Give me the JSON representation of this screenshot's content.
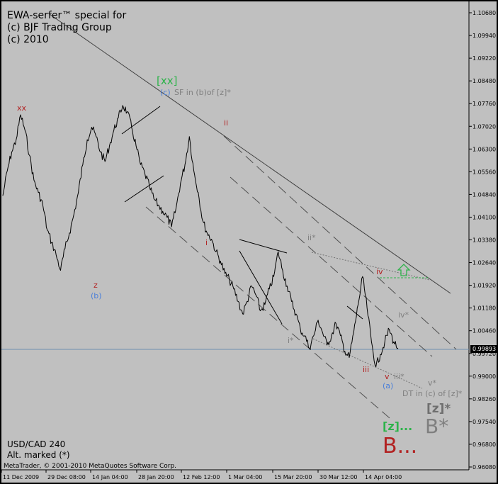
{
  "header": {
    "line1": "EWA-serfer™ special for",
    "line2": "(c) BJF Trading Group",
    "line3": "(c) 2010"
  },
  "footer": {
    "symbol": "USD/CAD 240",
    "alt_marked": "Alt. marked (*)",
    "copyright": "MetaTrader, © 2001-2010 MetaQuotes Software Corp."
  },
  "current_price_label": "0.99893",
  "colors": {
    "background": "#c0c0c0",
    "price_line": "#000000",
    "green_label": "#2db34a",
    "red_label": "#b22222",
    "blue_label": "#4a7fd9",
    "gray_label": "#7f7f7f",
    "current_price_line": "#6e8fb0"
  },
  "chart_data": {
    "type": "line",
    "symbol": "USD/CAD",
    "timeframe": "240",
    "ylim": [
      0.9608,
      1.1068
    ],
    "y_ticks": [
      "1.10680",
      "1.09940",
      "1.09220",
      "1.08480",
      "1.07760",
      "1.07020",
      "1.06300",
      "1.05560",
      "1.04840",
      "1.04100",
      "1.03380",
      "1.02640",
      "1.01920",
      "1.01180",
      "1.00460",
      "0.99720",
      "0.99000",
      "0.98260",
      "0.97540",
      "0.96800",
      "0.96080"
    ],
    "x_ticks": [
      "11 Dec 2009",
      "29 Dec 08:00",
      "14 Jan 04:00",
      "28 Jan 20:00",
      "12 Feb 12:00",
      "1 Mar 04:00",
      "15 Mar 20:00",
      "30 Mar 12:00",
      "14 Apr 04:00"
    ],
    "series": [
      {
        "values": [
          1.048,
          1.056,
          1.062,
          1.066,
          1.074,
          1.069,
          1.061,
          1.053,
          1.049,
          1.045,
          1.037,
          1.033,
          1.029,
          1.024,
          1.031,
          1.036,
          1.042,
          1.049,
          1.058,
          1.066,
          1.07,
          1.067,
          1.062,
          1.059,
          1.064,
          1.069,
          1.073,
          1.077,
          1.075,
          1.07,
          1.064,
          1.058,
          1.055,
          1.051,
          1.047,
          1.045,
          1.043,
          1.041,
          1.038,
          1.044,
          1.052,
          1.058,
          1.067,
          1.056,
          1.049,
          1.04,
          1.036,
          1.034,
          1.03,
          1.027,
          1.023,
          1.021,
          1.018,
          1.014,
          1.01,
          1.014,
          1.019,
          1.016,
          1.011,
          1.013,
          1.018,
          1.022,
          1.03,
          1.024,
          1.019,
          1.014,
          1.01,
          1.005,
          1.003,
          0.999,
          1.003,
          1.008,
          1.004,
          1.0,
          1.003,
          1.007,
          1.003,
          0.998,
          0.996,
          1.004,
          1.013,
          1.022,
          1.012,
          1.001,
          0.993,
          0.997,
          1.001,
          1.005,
          1.001,
          0.999
        ]
      }
    ],
    "wave_labels": [
      {
        "text": "xx",
        "color": "red"
      },
      {
        "text": "z",
        "color": "red"
      },
      {
        "text": "(b)",
        "color": "blue"
      },
      {
        "text": "[xx]",
        "color": "green"
      },
      {
        "text": "(c)",
        "color": "blue"
      },
      {
        "text": "SF in (b)of [z]*",
        "color": "gray"
      },
      {
        "text": "ii",
        "color": "red"
      },
      {
        "text": "i",
        "color": "red"
      },
      {
        "text": "ii*",
        "color": "gray"
      },
      {
        "text": "iv",
        "color": "red"
      },
      {
        "text": "iv*",
        "color": "gray"
      },
      {
        "text": "i*",
        "color": "gray"
      },
      {
        "text": "iii",
        "color": "red"
      },
      {
        "text": "v",
        "color": "red"
      },
      {
        "text": "iii*",
        "color": "gray"
      },
      {
        "text": "(a)",
        "color": "blue"
      },
      {
        "text": "v*",
        "color": "gray"
      },
      {
        "text": "DT in (c) of [z]*",
        "color": "gray"
      },
      {
        "text": "[z]*",
        "color": "gray"
      },
      {
        "text": "B*",
        "color": "gray"
      },
      {
        "text": "[z]...",
        "color": "green"
      },
      {
        "text": "B...",
        "color": "red"
      }
    ]
  }
}
